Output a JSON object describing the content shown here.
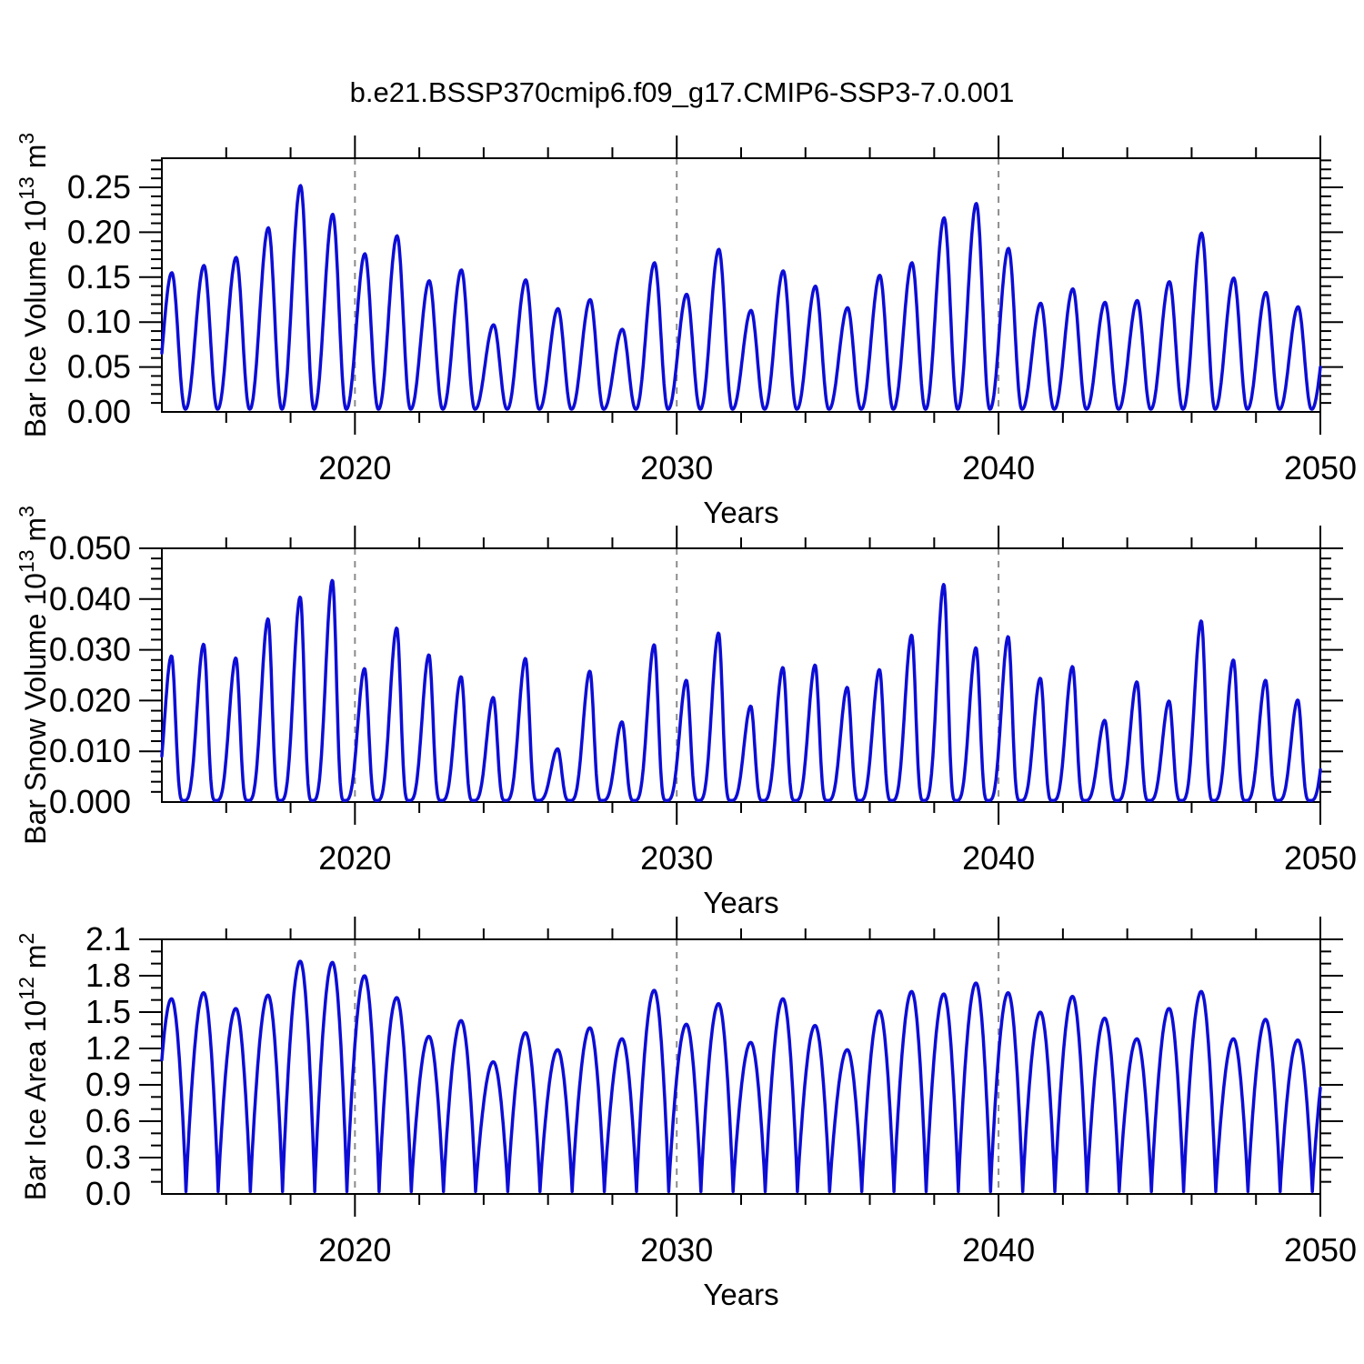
{
  "title": "b.e21.BSSP370cmip6.f09_g17.CMIP6-SSP3-7.0.001",
  "colors": {
    "line": "#0d0dd6",
    "axis": "#000000",
    "grid": "#8c8c8c",
    "background": "#ffffff",
    "text": "#000000"
  },
  "x_axis": {
    "label": "Years",
    "range": [
      2014,
      2050
    ],
    "major_ticks": [
      2020,
      2030,
      2040,
      2050
    ],
    "major_tick_labels": [
      "2020",
      "2030",
      "2040",
      "2050"
    ],
    "minor_tick_interval": 2,
    "dashed_gridlines": [
      2020,
      2030,
      2040
    ]
  },
  "chart_data": [
    {
      "type": "line",
      "id": "ice-volume",
      "series_name": "Bar Ice Volume",
      "ylabel_plain": "Bar Ice Volume 10^13 m^3",
      "ylabel_parts": [
        {
          "text": "Bar Ice Volume 10",
          "sup": false
        },
        {
          "text": "13",
          "sup": true
        },
        {
          "text": " m",
          "sup": false
        },
        {
          "text": "3",
          "sup": true
        }
      ],
      "xlabel": "Years",
      "ylim": [
        0,
        0.2824
      ],
      "ytick_values": [
        0.0,
        0.05,
        0.1,
        0.15,
        0.2,
        0.25
      ],
      "ytick_labels": [
        "0.00",
        "0.05",
        "0.10",
        "0.15",
        "0.20",
        "0.25"
      ],
      "yminor_interval": 0.01,
      "grid": false,
      "x_years": [
        2014,
        2015,
        2016,
        2017,
        2018,
        2019,
        2020,
        2021,
        2022,
        2023,
        2024,
        2025,
        2026,
        2027,
        2028,
        2029,
        2030,
        2031,
        2032,
        2033,
        2034,
        2035,
        2036,
        2037,
        2038,
        2039,
        2040,
        2041,
        2042,
        2043,
        2044,
        2045,
        2046,
        2047,
        2048,
        2049
      ],
      "annual_peak": [
        0.155,
        0.163,
        0.172,
        0.205,
        0.252,
        0.22,
        0.176,
        0.196,
        0.146,
        0.158,
        0.097,
        0.147,
        0.115,
        0.125,
        0.092,
        0.166,
        0.131,
        0.181,
        0.113,
        0.157,
        0.14,
        0.116,
        0.152,
        0.166,
        0.216,
        0.232,
        0.182,
        0.121,
        0.137,
        0.122,
        0.124,
        0.145,
        0.199,
        0.149,
        0.133,
        0.117
      ],
      "annual_min": 0.003,
      "seasonality": {
        "peak_month_frac": 0.31,
        "min_month_frac": 0.73,
        "peak_sharpness": 1.1
      }
    },
    {
      "type": "line",
      "id": "snow-volume",
      "series_name": "Bar Snow Volume",
      "ylabel_plain": "Bar Snow Volume 10^13 m^3",
      "ylabel_parts": [
        {
          "text": "Bar Snow Volume 10",
          "sup": false
        },
        {
          "text": "13",
          "sup": true
        },
        {
          "text": " m",
          "sup": false
        },
        {
          "text": "3",
          "sup": true
        }
      ],
      "xlabel": "Years",
      "ylim": [
        0,
        0.05
      ],
      "ytick_values": [
        0.0,
        0.01,
        0.02,
        0.03,
        0.04,
        0.05
      ],
      "ytick_labels": [
        "0.000",
        "0.010",
        "0.020",
        "0.030",
        "0.040",
        "0.050"
      ],
      "yminor_interval": 0.002,
      "grid": false,
      "x_years": [
        2014,
        2015,
        2016,
        2017,
        2018,
        2019,
        2020,
        2021,
        2022,
        2023,
        2024,
        2025,
        2026,
        2027,
        2028,
        2029,
        2030,
        2031,
        2032,
        2033,
        2034,
        2035,
        2036,
        2037,
        2038,
        2039,
        2040,
        2041,
        2042,
        2043,
        2044,
        2045,
        2046,
        2047,
        2048,
        2049
      ],
      "annual_peak": [
        0.0288,
        0.0311,
        0.0284,
        0.0361,
        0.0404,
        0.0437,
        0.0263,
        0.0343,
        0.029,
        0.0247,
        0.0206,
        0.0283,
        0.0105,
        0.0258,
        0.0158,
        0.031,
        0.024,
        0.0333,
        0.0189,
        0.0265,
        0.027,
        0.0226,
        0.0261,
        0.0329,
        0.0429,
        0.0304,
        0.0326,
        0.0244,
        0.0267,
        0.0161,
        0.0237,
        0.0199,
        0.0357,
        0.028,
        0.024,
        0.0201
      ],
      "annual_min": 0.0003,
      "seasonality": {
        "peak_month_frac": 0.3,
        "min_month_frac": 0.67,
        "peak_sharpness": 1.9
      }
    },
    {
      "type": "line",
      "id": "ice-area",
      "series_name": "Bar Ice Area",
      "ylabel_plain": "Bar Ice Area 10^12 m^2",
      "ylabel_parts": [
        {
          "text": "Bar Ice Area 10",
          "sup": false
        },
        {
          "text": "12",
          "sup": true
        },
        {
          "text": " m",
          "sup": false
        },
        {
          "text": "2",
          "sup": true
        }
      ],
      "xlabel": "Years",
      "ylim": [
        0,
        2.1
      ],
      "ytick_values": [
        0.0,
        0.3,
        0.6,
        0.9,
        1.2,
        1.5,
        1.8,
        2.1
      ],
      "ytick_labels": [
        "0.0",
        "0.3",
        "0.6",
        "0.9",
        "1.2",
        "1.5",
        "1.8",
        "2.1"
      ],
      "yminor_interval": 0.1,
      "grid": false,
      "x_years": [
        2014,
        2015,
        2016,
        2017,
        2018,
        2019,
        2020,
        2021,
        2022,
        2023,
        2024,
        2025,
        2026,
        2027,
        2028,
        2029,
        2030,
        2031,
        2032,
        2033,
        2034,
        2035,
        2036,
        2037,
        2038,
        2039,
        2040,
        2041,
        2042,
        2043,
        2044,
        2045,
        2046,
        2047,
        2048,
        2049
      ],
      "annual_peak": [
        1.61,
        1.66,
        1.53,
        1.64,
        1.92,
        1.91,
        1.8,
        1.62,
        1.3,
        1.43,
        1.09,
        1.33,
        1.19,
        1.37,
        1.28,
        1.68,
        1.4,
        1.57,
        1.25,
        1.61,
        1.39,
        1.19,
        1.51,
        1.67,
        1.65,
        1.74,
        1.66,
        1.5,
        1.63,
        1.45,
        1.28,
        1.53,
        1.67,
        1.28,
        1.44,
        1.27
      ],
      "annual_min": 0.02,
      "seasonality": {
        "peak_month_frac": 0.3,
        "min_month_frac": 0.75,
        "peak_sharpness": 0.45
      }
    }
  ]
}
